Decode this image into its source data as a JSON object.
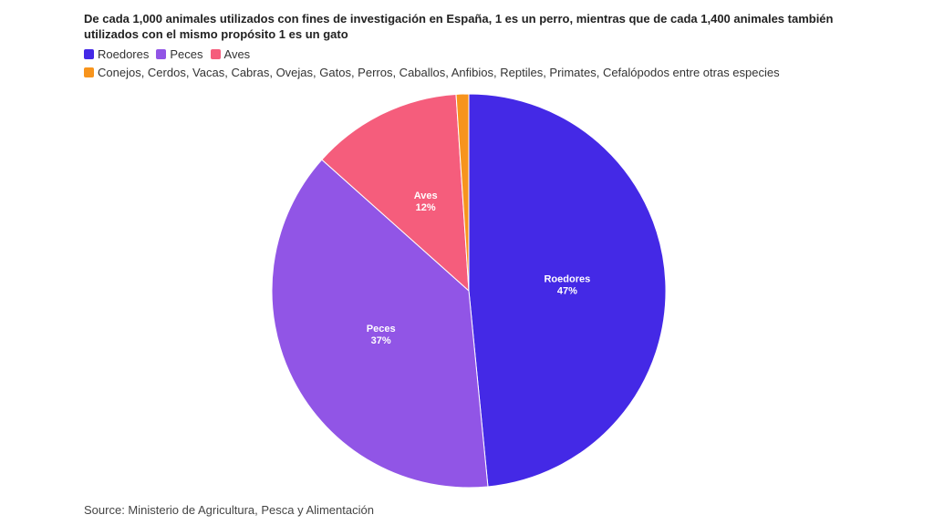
{
  "chart_data": {
    "type": "pie",
    "title": "De cada 1,000 animales utilizados con fines de investigación en España, 1 es un perro, mientras que de cada 1,400 animales también utilizados con el mismo propósito 1 es un gato",
    "categories": [
      "Roedores",
      "Peces",
      "Aves",
      "Conejos, Cerdos, Vacas, Cabras, Ovejas, Gatos, Perros, Caballos, Anfibios, Reptiles, Primates, Cefalópodos entre otras especies"
    ],
    "values": [
      47,
      37,
      12,
      1
    ],
    "value_labels": [
      "47%",
      "37%",
      "12%",
      null
    ],
    "colors": [
      "#4429e6",
      "#9155e6",
      "#f55d7c",
      "#f7941d"
    ],
    "source": "Source: Ministerio de Agricultura, Pesca y Alimentación"
  }
}
